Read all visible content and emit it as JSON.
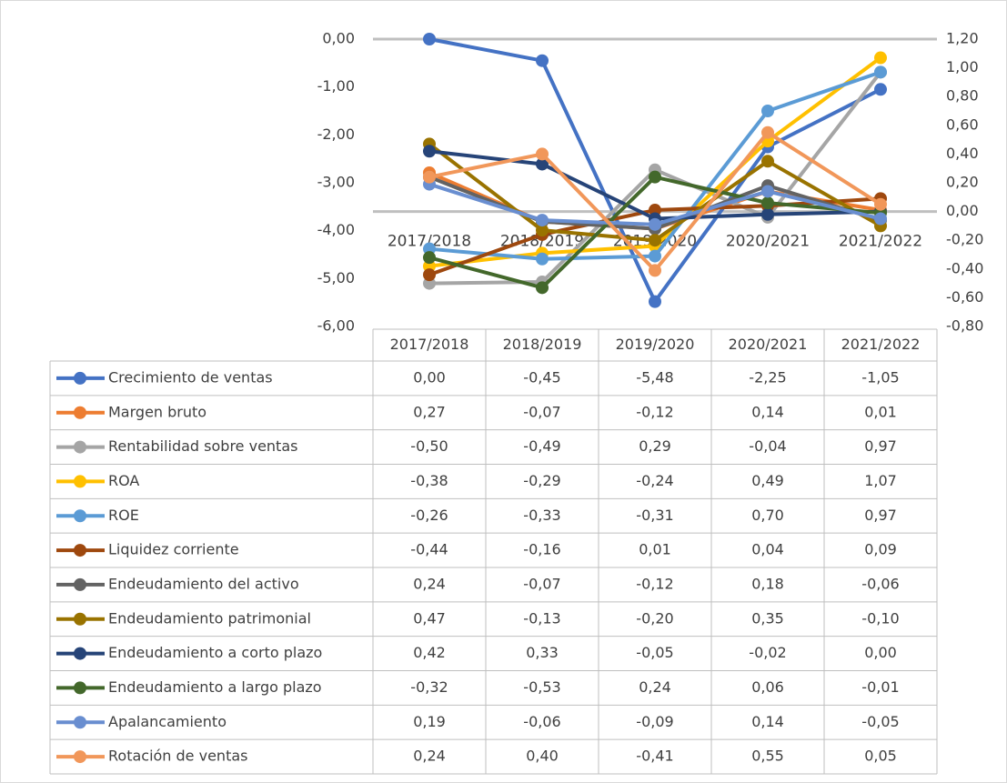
{
  "chart_data": {
    "type": "line",
    "categories": [
      "2017/2018",
      "2018/2019",
      "2019/2020",
      "2020/2021",
      "2021/2022"
    ],
    "ylim": [
      -6,
      0
    ],
    "yticks": [
      {
        "value": 0,
        "label": "0,00"
      },
      {
        "value": -1,
        "label": "-1,00"
      },
      {
        "value": -2,
        "label": "-2,00"
      },
      {
        "value": -3,
        "label": "-3,00"
      },
      {
        "value": -4,
        "label": "-4,00"
      },
      {
        "value": -5,
        "label": "-5,00"
      },
      {
        "value": -6,
        "label": "-6,00"
      }
    ],
    "y2lim": [
      -0.8,
      1.2
    ],
    "y2ticks": [
      {
        "value": 1.2,
        "label": "1,20"
      },
      {
        "value": 1,
        "label": "1,00"
      },
      {
        "value": 0.8,
        "label": "0,80"
      },
      {
        "value": 0.6,
        "label": "0,60"
      },
      {
        "value": 0.4,
        "label": "0,40"
      },
      {
        "value": 0.2,
        "label": "0,20"
      },
      {
        "value": 0,
        "label": "0,00"
      },
      {
        "value": -0.2,
        "label": "-0,20"
      },
      {
        "value": -0.4,
        "label": "-0,40"
      },
      {
        "value": -0.6,
        "label": "-0,60"
      },
      {
        "value": -0.8,
        "label": "-0,80"
      }
    ],
    "data_table": true,
    "series": [
      {
        "name": "Crecimiento de ventas",
        "color": "#4472c4",
        "axis": "y",
        "values": [
          0,
          -0.45,
          -5.48,
          -2.25,
          -1.05
        ],
        "value_labels": [
          "0,00",
          "-0,45",
          "-5,48",
          "-2,25",
          "-1,05"
        ]
      },
      {
        "name": "Margen bruto",
        "color": "#ed7d31",
        "axis": "y2",
        "values": [
          0.27,
          -0.07,
          -0.12,
          0.14,
          0.01
        ],
        "value_labels": [
          "0,27",
          "-0,07",
          "-0,12",
          "0,14",
          "0,01"
        ]
      },
      {
        "name": "Rentabilidad sobre ventas",
        "color": "#a5a5a5",
        "axis": "y2",
        "values": [
          -0.5,
          -0.49,
          0.29,
          -0.04,
          0.97
        ],
        "value_labels": [
          "-0,50",
          "-0,49",
          "0,29",
          "-0,04",
          "0,97"
        ]
      },
      {
        "name": "ROA",
        "color": "#ffc000",
        "axis": "y2",
        "values": [
          -0.38,
          -0.29,
          -0.24,
          0.49,
          1.07
        ],
        "value_labels": [
          "-0,38",
          "-0,29",
          "-0,24",
          "0,49",
          "1,07"
        ]
      },
      {
        "name": "ROE",
        "color": "#5b9bd5",
        "axis": "y2",
        "values": [
          -0.26,
          -0.33,
          -0.31,
          0.7,
          0.97
        ],
        "value_labels": [
          "-0,26",
          "-0,33",
          "-0,31",
          "0,70",
          "0,97"
        ]
      },
      {
        "name": "Liquidez corriente",
        "color": "#9e480e",
        "axis": "y2",
        "values": [
          -0.44,
          -0.16,
          0.01,
          0.04,
          0.09
        ],
        "value_labels": [
          "-0,44",
          "-0,16",
          "0,01",
          "0,04",
          "0,09"
        ]
      },
      {
        "name": "Endeudamiento del activo",
        "color": "#636363",
        "axis": "y2",
        "values": [
          0.24,
          -0.07,
          -0.12,
          0.18,
          -0.06
        ],
        "value_labels": [
          "0,24",
          "-0,07",
          "-0,12",
          "0,18",
          "-0,06"
        ]
      },
      {
        "name": "Endeudamiento patrimonial",
        "color": "#997300",
        "axis": "y2",
        "values": [
          0.47,
          -0.13,
          -0.2,
          0.35,
          -0.1
        ],
        "value_labels": [
          "0,47",
          "-0,13",
          "-0,20",
          "0,35",
          "-0,10"
        ]
      },
      {
        "name": "Endeudamiento a corto plazo",
        "color": "#264478",
        "axis": "y2",
        "values": [
          0.42,
          0.33,
          -0.05,
          -0.02,
          0
        ],
        "value_labels": [
          "0,42",
          "0,33",
          "-0,05",
          "-0,02",
          "0,00"
        ]
      },
      {
        "name": "Endeudamiento a largo plazo",
        "color": "#43682b",
        "axis": "y2",
        "values": [
          -0.32,
          -0.53,
          0.24,
          0.06,
          -0.01
        ],
        "value_labels": [
          "-0,32",
          "-0,53",
          "0,24",
          "0,06",
          "-0,01"
        ]
      },
      {
        "name": "Apalancamiento",
        "color": "#698ed0",
        "axis": "y2",
        "values": [
          0.19,
          -0.06,
          -0.09,
          0.14,
          -0.05
        ],
        "value_labels": [
          "0,19",
          "-0,06",
          "-0,09",
          "0,14",
          "-0,05"
        ]
      },
      {
        "name": "Rotación de ventas",
        "color": "#f1975a",
        "axis": "y2",
        "values": [
          0.24,
          0.4,
          -0.41,
          0.55,
          0.05
        ],
        "value_labels": [
          "0,24",
          "0,40",
          "-0,41",
          "0,55",
          "0,05"
        ]
      }
    ]
  }
}
